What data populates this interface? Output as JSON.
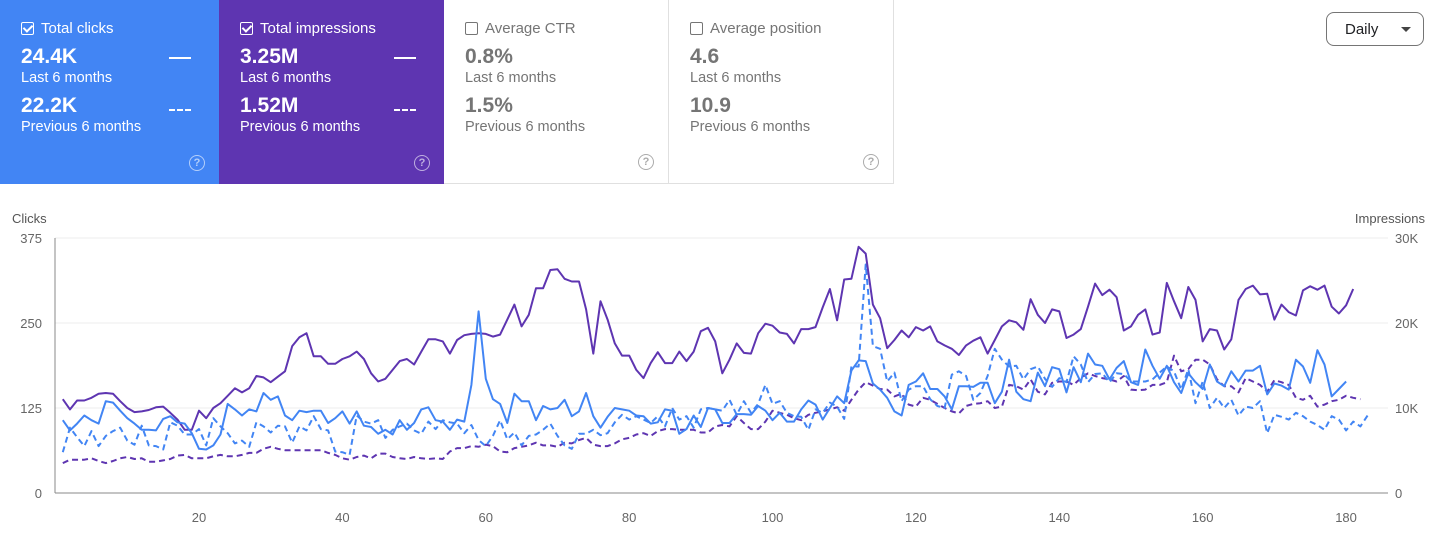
{
  "cards": [
    {
      "label": "Total clicks",
      "checked": true,
      "current": "24.4K",
      "current_label": "Last 6 months",
      "previous": "22.2K",
      "previous_label": "Previous 6 months",
      "color": "#4285f4"
    },
    {
      "label": "Total impressions",
      "checked": true,
      "current": "3.25M",
      "current_label": "Last 6 months",
      "previous": "1.52M",
      "previous_label": "Previous 6 months",
      "color": "#5e35b1"
    },
    {
      "label": "Average CTR",
      "checked": false,
      "current": "0.8%",
      "current_label": "Last 6 months",
      "previous": "1.5%",
      "previous_label": "Previous 6 months"
    },
    {
      "label": "Average position",
      "checked": false,
      "current": "4.6",
      "current_label": "Last 6 months",
      "previous": "10.9",
      "previous_label": "Previous 6 months"
    }
  ],
  "help_glyph": "?",
  "granularity": {
    "selected": "Daily"
  },
  "chart_data": {
    "type": "line",
    "ylabel": "Clicks",
    "y2label": "Impressions",
    "ylim": [
      0,
      375
    ],
    "y2lim": [
      0,
      30000
    ],
    "yticks": [
      "0",
      "125",
      "250",
      "375"
    ],
    "y2ticks": [
      "0",
      "10K",
      "20K",
      "30K"
    ],
    "xticks": [
      "20",
      "40",
      "60",
      "80",
      "100",
      "120",
      "140",
      "160",
      "180"
    ],
    "xlim": [
      1,
      184
    ],
    "grid": true,
    "series": [
      {
        "name": "Clicks (Last 6 months)",
        "axis": "left",
        "style": "solid",
        "color": "#4285f4",
        "values": [
          107,
          92,
          102,
          114,
          107,
          102,
          135,
          133,
          121,
          110,
          102,
          93,
          93,
          92,
          109,
          113,
          104,
          102,
          88,
          65,
          64,
          70,
          86,
          131,
          123,
          114,
          123,
          120,
          147,
          137,
          142,
          114,
          107,
          121,
          119,
          121,
          121,
          103,
          110,
          120,
          102,
          120,
          99,
          97,
          87,
          93,
          86,
          107,
          93,
          103,
          123,
          126,
          107,
          105,
          93,
          108,
          105,
          159,
          267,
          168,
          138,
          131,
          103,
          146,
          135,
          135,
          107,
          128,
          123,
          125,
          137,
          113,
          120,
          147,
          113,
          96,
          112,
          125,
          123,
          121,
          114,
          113,
          102,
          104,
          123,
          121,
          87,
          94,
          114,
          97,
          125,
          123,
          103,
          103,
          116,
          116,
          115,
          128,
          121,
          107,
          118,
          105,
          105,
          123,
          136,
          130,
          108,
          125,
          142,
          132,
          180,
          195,
          194,
          161,
          152,
          140,
          120,
          114,
          159,
          164,
          176,
          153,
          153,
          142,
          123,
          157,
          157,
          156,
          162,
          162,
          132,
          149,
          196,
          149,
          138,
          135,
          177,
          157,
          185,
          182,
          148,
          185,
          163,
          205,
          189,
          187,
          167,
          184,
          194,
          163,
          159,
          211,
          187,
          168,
          187,
          163,
          147,
          176,
          163,
          153,
          189,
          164,
          157,
          179,
          164,
          180,
          180,
          187,
          145,
          161,
          158,
          152,
          196,
          186,
          162,
          210,
          189,
          142,
          153,
          164
        ]
      },
      {
        "name": "Clicks (Previous 6 months)",
        "axis": "left",
        "style": "dashed",
        "color": "#4285f4",
        "values": [
          60,
          96,
          82,
          69,
          91,
          69,
          84,
          91,
          96,
          77,
          71,
          99,
          70,
          69,
          64,
          104,
          99,
          86,
          86,
          94,
          70,
          110,
          98,
          88,
          73,
          77,
          68,
          104,
          98,
          89,
          99,
          98,
          74,
          98,
          92,
          113,
          94,
          92,
          61,
          60,
          56,
          114,
          105,
          102,
          107,
          81,
          93,
          98,
          102,
          92,
          87,
          105,
          94,
          107,
          104,
          102,
          88,
          100,
          78,
          69,
          84,
          107,
          79,
          89,
          70,
          84,
          86,
          93,
          102,
          84,
          70,
          65,
          87,
          87,
          93,
          85,
          88,
          104,
          115,
          108,
          113,
          108,
          103,
          113,
          98,
          125,
          108,
          113,
          96,
          123,
          125,
          123,
          121,
          137,
          115,
          135,
          118,
          131,
          159,
          131,
          135,
          118,
          113,
          112,
          93,
          123,
          118,
          133,
          127,
          109,
          186,
          186,
          336,
          216,
          212,
          164,
          177,
          135,
          152,
          157,
          157,
          138,
          128,
          125,
          174,
          179,
          172,
          137,
          147,
          172,
          212,
          196,
          186,
          187,
          167,
          182,
          186,
          168,
          156,
          169,
          163,
          201,
          189,
          163,
          175,
          176,
          163,
          176,
          175,
          164,
          164,
          164,
          167,
          177,
          186,
          179,
          152,
          182,
          132,
          164,
          125,
          140,
          125,
          137,
          114,
          127,
          125,
          135,
          88,
          115,
          112,
          108,
          118,
          113,
          105,
          100,
          93,
          113,
          108,
          92,
          105,
          98,
          114
        ]
      },
      {
        "name": "Impressions (Last 6 months)",
        "axis": "right",
        "style": "solid",
        "color": "#5e35b1",
        "values": [
          11040,
          9840,
          10880,
          10880,
          11200,
          11680,
          11760,
          11680,
          10800,
          10000,
          9520,
          9600,
          9760,
          10080,
          10160,
          9440,
          8640,
          7440,
          7440,
          9680,
          8800,
          10000,
          10560,
          11440,
          12320,
          11840,
          12320,
          13760,
          13600,
          13040,
          13680,
          14320,
          17280,
          18320,
          18800,
          16080,
          16080,
          15200,
          15200,
          15760,
          16080,
          16640,
          15760,
          14080,
          13120,
          13440,
          14480,
          15520,
          15760,
          15120,
          16640,
          18080,
          18080,
          17840,
          16400,
          18000,
          18560,
          18720,
          18800,
          18720,
          18400,
          18640,
          20400,
          22160,
          19600,
          20960,
          24080,
          24080,
          26240,
          26320,
          25200,
          24880,
          24880,
          21600,
          16400,
          22560,
          20400,
          17600,
          16160,
          16160,
          14480,
          13520,
          15280,
          16560,
          15280,
          15280,
          16640,
          15520,
          16640,
          19040,
          19440,
          17840,
          14080,
          15680,
          17600,
          16480,
          16400,
          18800,
          19920,
          19680,
          18880,
          18720,
          17600,
          19280,
          19280,
          19520,
          21840,
          24000,
          20320,
          25120,
          25200,
          28960,
          28160,
          22160,
          20560,
          17040,
          18000,
          19120,
          18320,
          19520,
          19120,
          19600,
          17840,
          17360,
          16960,
          16240,
          17360,
          17920,
          18320,
          16400,
          18000,
          19600,
          20320,
          20080,
          19200,
          22800,
          20960,
          20000,
          21600,
          21360,
          18240,
          18640,
          19280,
          21920,
          24640,
          23280,
          23920,
          23040,
          19120,
          19600,
          20960,
          21600,
          18640,
          18880,
          24720,
          22560,
          20560,
          24240,
          22720,
          17840,
          19280,
          19120,
          16880,
          18080,
          22720,
          24000,
          24400,
          23360,
          23440,
          20400,
          22160,
          21280,
          20880,
          23840,
          24320,
          23920,
          24400,
          21920,
          21120,
          22080,
          24000
        ]
      },
      {
        "name": "Impressions (Previous 6 months)",
        "axis": "right",
        "style": "dashed",
        "color": "#5e35b1",
        "values": [
          3520,
          3920,
          3920,
          3920,
          4080,
          3760,
          3520,
          3760,
          4080,
          4240,
          4000,
          4080,
          3680,
          3680,
          3840,
          4000,
          4400,
          4480,
          4080,
          4080,
          4080,
          4320,
          4480,
          4320,
          4320,
          4480,
          4720,
          4720,
          5200,
          5440,
          5200,
          5040,
          5040,
          5040,
          5040,
          5040,
          5040,
          4720,
          4480,
          4080,
          3920,
          4240,
          4400,
          4080,
          4640,
          4640,
          4240,
          4080,
          4000,
          4240,
          4080,
          4000,
          4080,
          4000,
          4880,
          5280,
          5280,
          5520,
          5440,
          5680,
          5520,
          4880,
          4800,
          5280,
          5440,
          5600,
          5920,
          5600,
          5600,
          5440,
          5920,
          5840,
          6240,
          6480,
          5680,
          5520,
          5520,
          5840,
          6320,
          6480,
          6880,
          7040,
          6720,
          7280,
          7520,
          7520,
          7440,
          7440,
          7440,
          7120,
          7120,
          7840,
          8000,
          7840,
          9040,
          8240,
          7520,
          7520,
          8400,
          9680,
          9440,
          9200,
          8800,
          8560,
          9200,
          9440,
          9600,
          9840,
          10080,
          9680,
          10960,
          12160,
          13040,
          12640,
          12240,
          12160,
          11360,
          11680,
          10400,
          10160,
          11200,
          10960,
          10480,
          10000,
          9600,
          9360,
          10240,
          10480,
          10560,
          10800,
          10000,
          10160,
          12720,
          12560,
          12160,
          13360,
          11920,
          11600,
          12960,
          13120,
          13120,
          12720,
          13520,
          14080,
          13760,
          13520,
          13360,
          13120,
          13760,
          12160,
          12080,
          12160,
          12720,
          12720,
          13040,
          16160,
          14320,
          14560,
          15680,
          15680,
          15120,
          13360,
          12560,
          12560,
          11840,
          13520,
          13120,
          12720,
          11920,
          13280,
          13040,
          12720,
          11200,
          10960,
          11440,
          10160,
          10400,
          10800,
          10960,
          11440,
          11200,
          11040
        ]
      }
    ]
  }
}
